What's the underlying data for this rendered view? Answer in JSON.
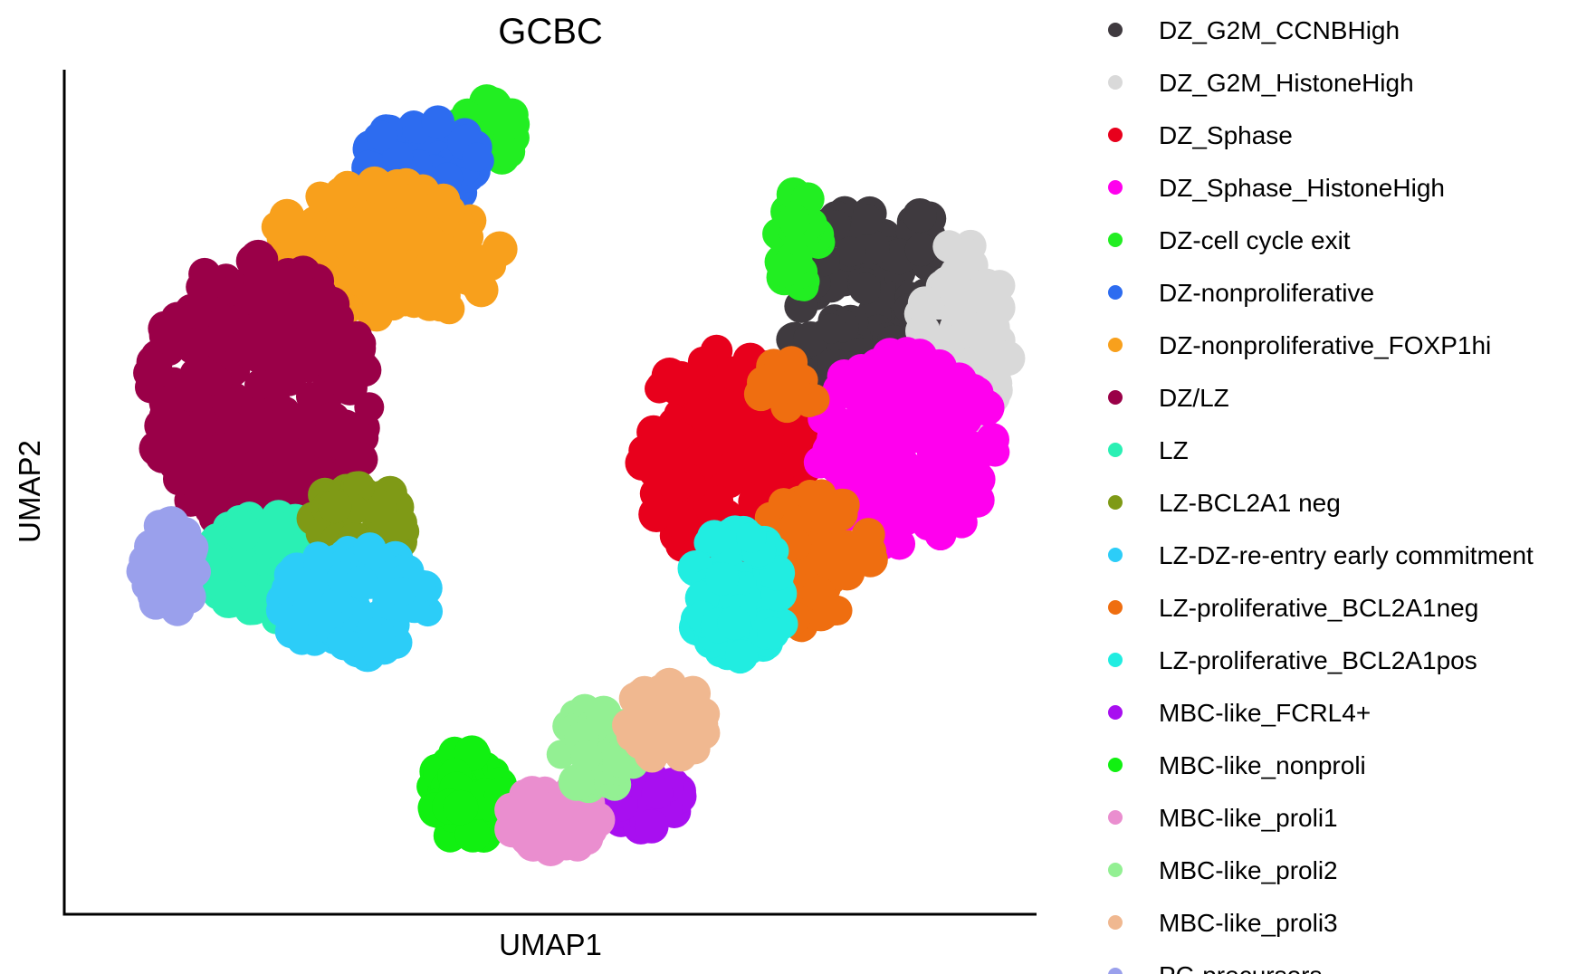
{
  "chart_data": {
    "type": "scatter",
    "title": "GCBC",
    "xlabel": "UMAP1",
    "ylabel": "UMAP2",
    "xlim": [
      0,
      100
    ],
    "ylim": [
      0,
      100
    ],
    "grid": false,
    "ticks": false,
    "legend_position": "right",
    "series": [
      {
        "name": "DZ_G2M_CCNBHigh",
        "color": "#3f3a3f",
        "clusters": [
          {
            "cx": 86.5,
            "cy": 75.0,
            "rx": 10.0,
            "ry": 12.0,
            "n": 110
          },
          {
            "cx": 82.0,
            "cy": 68.0,
            "rx": 6.0,
            "ry": 5.0,
            "n": 30
          }
        ]
      },
      {
        "name": "DZ_G2M_HistoneHigh",
        "color": "#d9d9d9",
        "clusters": [
          {
            "cx": 95.5,
            "cy": 70.0,
            "rx": 5.0,
            "ry": 12.5,
            "n": 90
          }
        ]
      },
      {
        "name": "DZ_Sphase",
        "color": "#e8001c",
        "clusters": [
          {
            "cx": 69.0,
            "cy": 54.5,
            "rx": 9.5,
            "ry": 13.5,
            "n": 200
          }
        ]
      },
      {
        "name": "DZ_Sphase_HistoneHigh",
        "color": "#ff00ee",
        "clusters": [
          {
            "cx": 89.0,
            "cy": 55.5,
            "rx": 10.0,
            "ry": 12.5,
            "n": 200
          }
        ]
      },
      {
        "name": "DZ-cell cycle exit",
        "color": "#22ee22",
        "clusters": [
          {
            "cx": 42.5,
            "cy": 96.0,
            "rx": 3.5,
            "ry": 4.0,
            "n": 40
          },
          {
            "cx": 77.0,
            "cy": 82.0,
            "rx": 2.5,
            "ry": 7.0,
            "n": 25
          }
        ]
      },
      {
        "name": "DZ-nonproliferative",
        "color": "#2d6cf0",
        "clusters": [
          {
            "cx": 35.5,
            "cy": 92.0,
            "rx": 6.5,
            "ry": 5.5,
            "n": 80
          }
        ]
      },
      {
        "name": "DZ-nonproliferative_FOXP1hi",
        "color": "#f8a01c",
        "clusters": [
          {
            "cx": 31.5,
            "cy": 80.5,
            "rx": 13.0,
            "ry": 9.0,
            "n": 170
          }
        ]
      },
      {
        "name": "DZ/LZ",
        "color": "#9a0048",
        "clusters": [
          {
            "cx": 17.5,
            "cy": 62.0,
            "rx": 12.5,
            "ry": 18.0,
            "n": 320
          }
        ]
      },
      {
        "name": "LZ",
        "color": "#2af0b4",
        "clusters": [
          {
            "cx": 19.5,
            "cy": 40.5,
            "rx": 8.0,
            "ry": 7.0,
            "n": 120
          }
        ]
      },
      {
        "name": "LZ-BCL2A1 neg",
        "color": "#7f9a16",
        "clusters": [
          {
            "cx": 28.5,
            "cy": 46.0,
            "rx": 5.5,
            "ry": 5.0,
            "n": 60
          }
        ]
      },
      {
        "name": "LZ-DZ-re-entry early commitment",
        "color": "#2ccdf8",
        "clusters": [
          {
            "cx": 28.0,
            "cy": 36.0,
            "rx": 8.5,
            "ry": 7.0,
            "n": 120
          }
        ]
      },
      {
        "name": "LZ-proliferative_BCL2A1neg",
        "color": "#ef6e10",
        "clusters": [
          {
            "cx": 79.0,
            "cy": 41.5,
            "rx": 6.5,
            "ry": 9.0,
            "n": 70
          },
          {
            "cx": 76.0,
            "cy": 62.5,
            "rx": 3.0,
            "ry": 4.0,
            "n": 20
          }
        ]
      },
      {
        "name": "LZ-proliferative_BCL2A1pos",
        "color": "#21ede1",
        "clusters": [
          {
            "cx": 70.5,
            "cy": 36.5,
            "rx": 5.5,
            "ry": 9.0,
            "n": 100
          }
        ]
      },
      {
        "name": "MBC-like_FCRL4+",
        "color": "#a80ff0",
        "clusters": [
          {
            "cx": 60.0,
            "cy": 11.0,
            "rx": 4.0,
            "ry": 4.0,
            "n": 60
          }
        ]
      },
      {
        "name": "MBC-like_nonproli",
        "color": "#11f011",
        "clusters": [
          {
            "cx": 40.5,
            "cy": 11.5,
            "rx": 4.0,
            "ry": 6.5,
            "n": 70
          }
        ]
      },
      {
        "name": "MBC-like_proli1",
        "color": "#ea8ecf",
        "clusters": [
          {
            "cx": 50.0,
            "cy": 8.0,
            "rx": 5.0,
            "ry": 4.5,
            "n": 70
          }
        ]
      },
      {
        "name": "MBC-like_proli2",
        "color": "#93f093",
        "clusters": [
          {
            "cx": 55.0,
            "cy": 17.0,
            "rx": 4.5,
            "ry": 5.5,
            "n": 50
          }
        ]
      },
      {
        "name": "MBC-like_proli3",
        "color": "#f0b890",
        "clusters": [
          {
            "cx": 62.5,
            "cy": 20.5,
            "rx": 4.5,
            "ry": 5.0,
            "n": 50
          }
        ]
      },
      {
        "name": "PC-precursors",
        "color": "#9aa0ec",
        "clusters": [
          {
            "cx": 7.5,
            "cy": 40.5,
            "rx": 3.0,
            "ry": 6.0,
            "n": 40
          }
        ]
      }
    ]
  }
}
